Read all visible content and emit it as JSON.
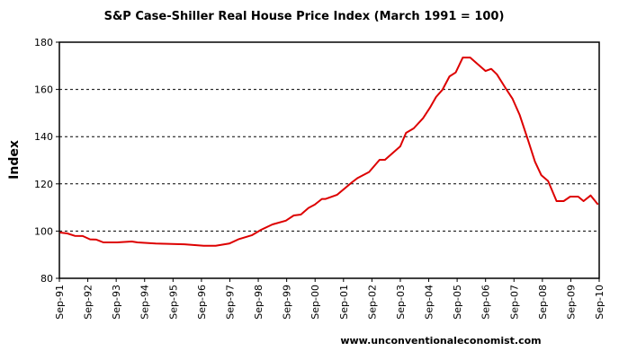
{
  "chart_data": {
    "type": "line",
    "title": "S&P Case-Shiller Real House Price Index (March 1991 = 100)",
    "xlabel": "",
    "ylabel": "Index",
    "ylim": [
      80,
      180
    ],
    "yticks": [
      "80",
      "100",
      "120",
      "140",
      "160",
      "180"
    ],
    "xlim": [
      1991.67,
      2010.67
    ],
    "xtick_labels": [
      "Sep-91",
      "Sep-92",
      "Sep-93",
      "Sep-94",
      "Sep-95",
      "Sep-96",
      "Sep-97",
      "Sep-98",
      "Sep-99",
      "Sep-00",
      "Sep-01",
      "Sep-02",
      "Sep-03",
      "Sep-04",
      "Sep-05",
      "Sep-06",
      "Sep-07",
      "Sep-08",
      "Sep-09",
      "Sep-10"
    ],
    "grid": "horizontal dashed",
    "legend": "none",
    "series": [
      {
        "name": "Real House Price Index",
        "color": "#dd0000",
        "x": [
          1991.69,
          1991.95,
          1992.21,
          1992.49,
          1992.75,
          1992.97,
          1993.22,
          1993.7,
          1994.22,
          1994.42,
          1995.06,
          1996.07,
          1996.75,
          1997.17,
          1997.65,
          1997.97,
          1998.44,
          1998.76,
          1999.17,
          1999.64,
          1999.92,
          2000.17,
          2000.44,
          2000.66,
          2000.91,
          2001.04,
          2001.45,
          2001.97,
          2002.17,
          2002.57,
          2002.94,
          2003.13,
          2003.67,
          2003.87,
          2004.14,
          2004.47,
          2004.71,
          2004.93,
          2005.15,
          2005.4,
          2005.62,
          2005.87,
          2006.13,
          2006.67,
          2006.87,
          2007.07,
          2007.37,
          2007.62,
          2007.87,
          2008.17,
          2008.41,
          2008.63,
          2008.87,
          2009.17,
          2009.42,
          2009.65,
          2009.93,
          2010.12,
          2010.37,
          2010.63
        ],
        "y": [
          99.4,
          99.0,
          98.0,
          97.9,
          96.5,
          96.4,
          95.2,
          95.2,
          95.6,
          95.2,
          94.7,
          94.4,
          93.8,
          93.8,
          94.7,
          96.5,
          98.2,
          100.5,
          102.8,
          104.4,
          106.6,
          107.0,
          109.8,
          111.2,
          113.6,
          113.6,
          115.4,
          120.7,
          122.5,
          125.0,
          130.2,
          130.2,
          135.9,
          141.6,
          143.5,
          147.8,
          152.2,
          156.8,
          159.8,
          165.5,
          167.2,
          173.5,
          173.5,
          167.8,
          168.7,
          166.4,
          160.6,
          156.0,
          149.2,
          138.3,
          129.4,
          123.7,
          121.2,
          112.7,
          112.7,
          114.6,
          114.6,
          112.7,
          115.1,
          111.2
        ]
      }
    ],
    "footer": "www.unconventionaleconomist.com"
  }
}
